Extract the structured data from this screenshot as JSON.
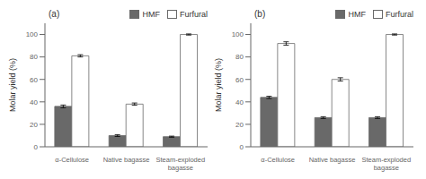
{
  "chart_data": [
    {
      "type": "bar",
      "annotations": [
        "(a)"
      ],
      "ylabel": "Molar yield (%)",
      "categories": [
        "α-Cellulose",
        "Native bagasse",
        "Steam-exploded\nbagasse"
      ],
      "series": [
        {
          "name": "HMF",
          "color": "#696969",
          "values": [
            36,
            10,
            9
          ],
          "errors": [
            1.2,
            0.8,
            0.5
          ]
        },
        {
          "name": "Furfural",
          "color": "#ffffff",
          "values": [
            81,
            38,
            100
          ],
          "errors": [
            1.0,
            1.0,
            0.5
          ]
        }
      ],
      "ylim": [
        0,
        110
      ],
      "yticks": [
        0,
        20,
        40,
        60,
        80,
        100
      ],
      "grid": false,
      "legend": "upper right"
    },
    {
      "type": "bar",
      "annotations": [
        "(b)"
      ],
      "ylabel": "Molar yield (%)",
      "categories": [
        "α-Cellulose",
        "Native bagasse",
        "Steam-exploded\nbagasse"
      ],
      "series": [
        {
          "name": "HMF",
          "color": "#696969",
          "values": [
            44,
            26,
            26
          ],
          "errors": [
            1.0,
            0.8,
            0.8
          ]
        },
        {
          "name": "Furfural",
          "color": "#ffffff",
          "values": [
            92,
            60,
            100
          ],
          "errors": [
            1.5,
            1.5,
            0.5
          ]
        }
      ],
      "ylim": [
        0,
        110
      ],
      "yticks": [
        0,
        20,
        40,
        60,
        80,
        100
      ],
      "grid": false,
      "legend": "upper right"
    }
  ]
}
